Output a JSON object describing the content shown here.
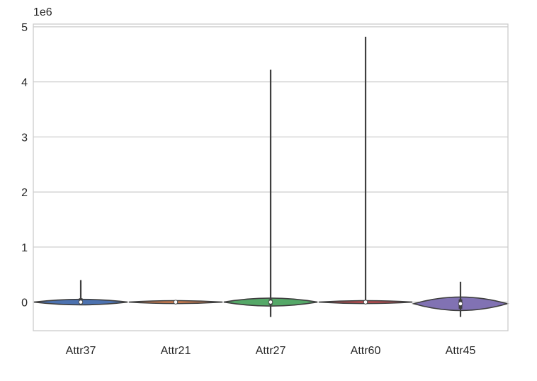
{
  "chart_data": {
    "type": "violin",
    "title": "",
    "xlabel": "",
    "ylabel": "",
    "y_offset_label": "1e6",
    "ylim": [
      -0.52,
      5.05
    ],
    "yticks": [
      0,
      1,
      2,
      3,
      4,
      5
    ],
    "ytick_labels": [
      "0",
      "1",
      "2",
      "3",
      "4",
      "5"
    ],
    "grid": true,
    "categories": [
      "Attr37",
      "Attr21",
      "Attr27",
      "Attr60",
      "Attr45"
    ],
    "series": [
      {
        "category": "Attr37",
        "color": "#4c72b0",
        "min": -0.02,
        "q1": 0.0,
        "median": 0.0,
        "q3": 0.07,
        "max": 0.4,
        "max_density_halfwidth": 1.0,
        "density_peak": 0.0
      },
      {
        "category": "Attr21",
        "color": "#dd8452",
        "min": -0.01,
        "q1": -0.01,
        "median": 0.0,
        "q3": 0.01,
        "max": 0.03,
        "max_density_halfwidth": 1.0,
        "density_peak": 0.0
      },
      {
        "category": "Attr27",
        "color": "#55a868",
        "min": -0.27,
        "q1": -0.05,
        "median": 0.0,
        "q3": 0.05,
        "max": 4.22,
        "max_density_halfwidth": 1.0,
        "density_peak": 0.0
      },
      {
        "category": "Attr60",
        "color": "#c44e52",
        "min": -0.02,
        "q1": -0.01,
        "median": 0.0,
        "q3": 0.02,
        "max": 4.82,
        "max_density_halfwidth": 1.0,
        "density_peak": 0.0
      },
      {
        "category": "Attr45",
        "color": "#8172b3",
        "min": -0.27,
        "q1": -0.12,
        "median": -0.03,
        "q3": 0.05,
        "max": 0.37,
        "max_density_halfwidth": 1.0,
        "density_peak": 0.0
      }
    ]
  }
}
